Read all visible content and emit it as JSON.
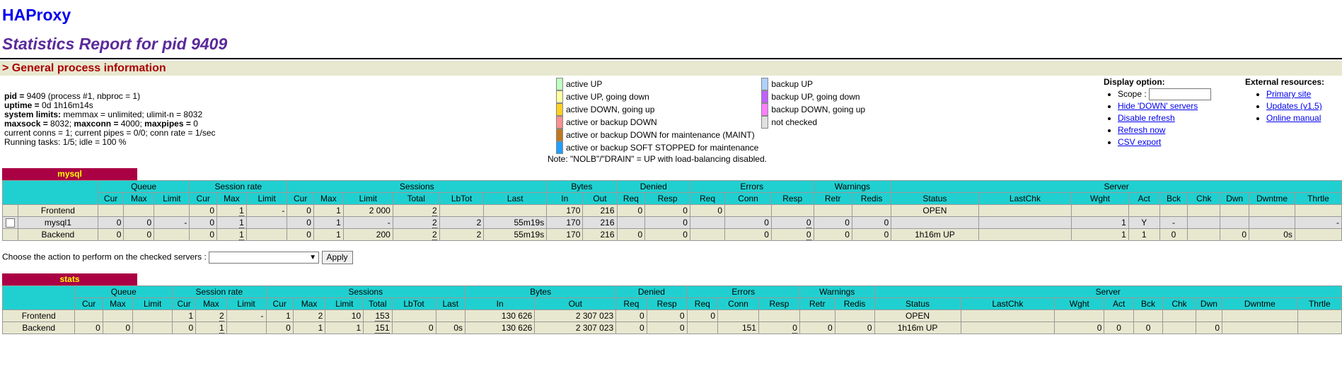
{
  "header": {
    "title": "HAProxy",
    "subtitle": "Statistics Report for pid 9409",
    "section_title": "> General process information"
  },
  "process_info": {
    "pid_label": "pid = ",
    "pid_value": "9409 (process #1, nbproc = 1)",
    "uptime_label": "uptime = ",
    "uptime_value": "0d 1h16m14s",
    "syslimits_label": "system limits:",
    "syslimits_value": " memmax = unlimited; ulimit-n = 8032",
    "maxsock_label": "maxsock = ",
    "maxsock_value": "8032; ",
    "maxconn_label": "maxconn = ",
    "maxconn_value": "4000; ",
    "maxpipes_label": "maxpipes = ",
    "maxpipes_value": "0",
    "conns_line": "current conns = 1; current pipes = 0/0; conn rate = 1/sec",
    "tasks_line": "Running tasks: 1/5; idle = 100 %"
  },
  "legend": {
    "items_left": [
      {
        "label": "active UP",
        "color": "#c0ffc0"
      },
      {
        "label": "active UP, going down",
        "color": "#ffffa0"
      },
      {
        "label": "active DOWN, going up",
        "color": "#ffd020"
      },
      {
        "label": "active or backup DOWN",
        "color": "#ff9090"
      },
      {
        "label": "active or backup DOWN for maintenance (MAINT)",
        "color": "#c07820"
      },
      {
        "label": "active or backup SOFT STOPPED for maintenance",
        "color": "#20a0ff"
      }
    ],
    "items_right": [
      {
        "label": "backup UP",
        "color": "#b0d0ff"
      },
      {
        "label": "backup UP, going down",
        "color": "#c060ff"
      },
      {
        "label": "backup DOWN, going up",
        "color": "#ff80ff"
      },
      {
        "label": "not checked",
        "color": "#e0e0e0"
      }
    ],
    "note": "Note: \"NOLB\"/\"DRAIN\" = UP with load-balancing disabled."
  },
  "display_option": {
    "title": "Display option:",
    "scope_label": "Scope :",
    "scope_value": "",
    "links": [
      "Hide 'DOWN' servers",
      "Disable refresh",
      "Refresh now",
      "CSV export"
    ]
  },
  "external_resources": {
    "title": "External resources:",
    "links": [
      "Primary site",
      "Updates (v1.5)",
      "Online manual"
    ]
  },
  "headers": {
    "groups": [
      "Queue",
      "Session rate",
      "Sessions",
      "Bytes",
      "Denied",
      "Errors",
      "Warnings",
      "Server"
    ],
    "queue": [
      "Cur",
      "Max",
      "Limit"
    ],
    "rate": [
      "Cur",
      "Max",
      "Limit"
    ],
    "sessions": [
      "Cur",
      "Max",
      "Limit",
      "Total",
      "LbTot",
      "Last"
    ],
    "bytes": [
      "In",
      "Out"
    ],
    "denied": [
      "Req",
      "Resp"
    ],
    "errors": [
      "Req",
      "Conn",
      "Resp"
    ],
    "warnings": [
      "Retr",
      "Redis"
    ],
    "server": [
      "Status",
      "LastChk",
      "Wght",
      "Act",
      "Bck",
      "Chk",
      "Dwn",
      "Dwntme",
      "Thrtle"
    ]
  },
  "mysql": {
    "name": "mysql",
    "frontend": {
      "name": "Frontend",
      "q_cur": "",
      "q_max": "",
      "q_lim": "",
      "r_cur": "0",
      "r_max": "1",
      "r_lim": "-",
      "s_cur": "0",
      "s_max": "1",
      "s_lim": "2 000",
      "s_tot": "2",
      "lbtot": "",
      "last": "",
      "b_in": "170",
      "b_out": "216",
      "d_req": "0",
      "d_resp": "0",
      "e_req": "0",
      "e_conn": "",
      "e_resp": "",
      "w_retr": "",
      "w_redis": "",
      "status": "OPEN",
      "lastchk": "",
      "wght": "",
      "act": "",
      "bck": "",
      "chk": "",
      "dwn": "",
      "dwntme": "",
      "thrtle": ""
    },
    "server": {
      "name": "mysql1",
      "q_cur": "0",
      "q_max": "0",
      "q_lim": "-",
      "r_cur": "0",
      "r_max": "1",
      "r_lim": "",
      "s_cur": "0",
      "s_max": "1",
      "s_lim": "-",
      "s_tot": "2",
      "lbtot": "2",
      "last": "55m19s",
      "b_in": "170",
      "b_out": "216",
      "d_req": "",
      "d_resp": "0",
      "e_req": "",
      "e_conn": "0",
      "e_resp": "0",
      "w_retr": "0",
      "w_redis": "0",
      "status": "",
      "lastchk": "",
      "wght": "1",
      "act": "Y",
      "bck": "-",
      "chk": "",
      "dwn": "",
      "dwntme": "",
      "thrtle": "-"
    },
    "backend": {
      "name": "Backend",
      "q_cur": "0",
      "q_max": "0",
      "q_lim": "",
      "r_cur": "0",
      "r_max": "1",
      "r_lim": "",
      "s_cur": "0",
      "s_max": "1",
      "s_lim": "200",
      "s_tot": "2",
      "lbtot": "2",
      "last": "55m19s",
      "b_in": "170",
      "b_out": "216",
      "d_req": "0",
      "d_resp": "0",
      "e_req": "",
      "e_conn": "0",
      "e_resp": "0",
      "w_retr": "0",
      "w_redis": "0",
      "status": "1h16m UP",
      "lastchk": "",
      "wght": "1",
      "act": "1",
      "bck": "0",
      "chk": "",
      "dwn": "0",
      "dwntme": "0s",
      "thrtle": ""
    }
  },
  "action": {
    "label": "Choose the action to perform on the checked servers : ",
    "selected": "",
    "apply_label": "Apply"
  },
  "stats": {
    "name": "stats",
    "frontend": {
      "name": "Frontend",
      "q_cur": "",
      "q_max": "",
      "q_lim": "",
      "r_cur": "1",
      "r_max": "2",
      "r_lim": "-",
      "s_cur": "1",
      "s_max": "2",
      "s_lim": "10",
      "s_tot": "153",
      "lbtot": "",
      "last": "",
      "b_in": "130 626",
      "b_out": "2 307 023",
      "d_req": "0",
      "d_resp": "0",
      "e_req": "0",
      "e_conn": "",
      "e_resp": "",
      "w_retr": "",
      "w_redis": "",
      "status": "OPEN",
      "lastchk": "",
      "wght": "",
      "act": "",
      "bck": "",
      "chk": "",
      "dwn": "",
      "dwntme": "",
      "thrtle": ""
    },
    "backend": {
      "name": "Backend",
      "q_cur": "0",
      "q_max": "0",
      "q_lim": "",
      "r_cur": "0",
      "r_max": "1",
      "r_lim": "",
      "s_cur": "0",
      "s_max": "1",
      "s_lim": "1",
      "s_tot": "151",
      "lbtot": "0",
      "last": "0s",
      "b_in": "130 626",
      "b_out": "2 307 023",
      "d_req": "0",
      "d_resp": "0",
      "e_req": "",
      "e_conn": "151",
      "e_resp": "0",
      "w_retr": "0",
      "w_redis": "0",
      "status": "1h16m UP",
      "lastchk": "",
      "wght": "0",
      "act": "0",
      "bck": "0",
      "chk": "",
      "dwn": "0",
      "dwntme": "",
      "thrtle": ""
    }
  }
}
